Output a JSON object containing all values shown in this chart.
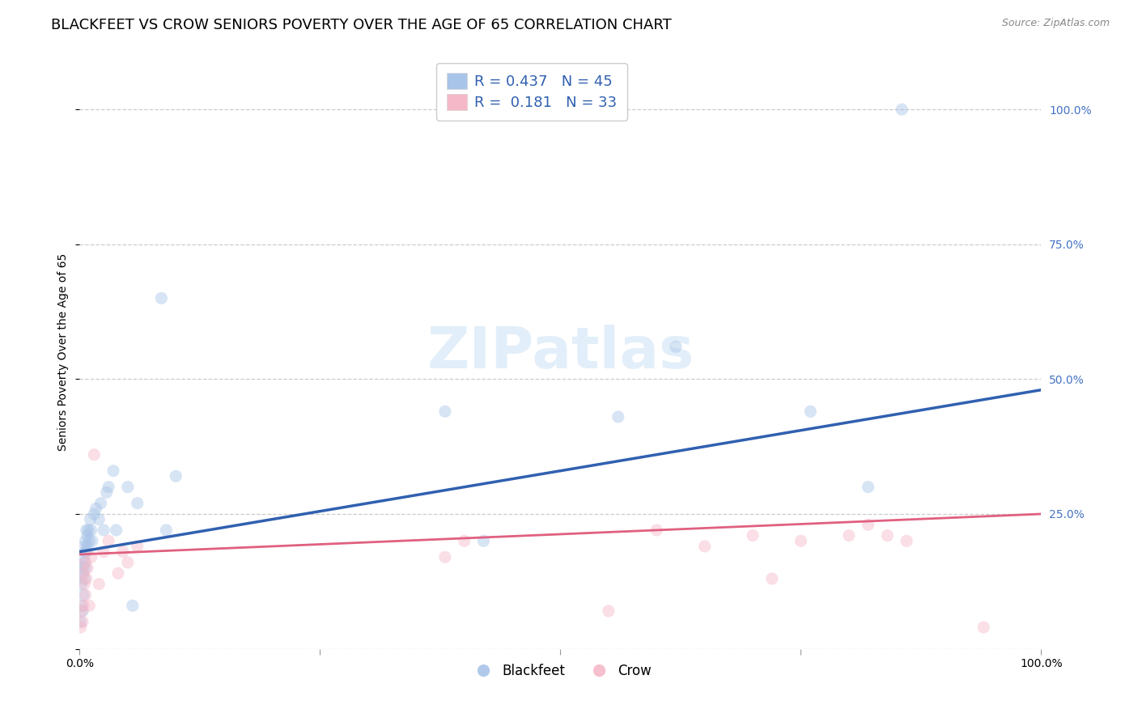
{
  "title": "BLACKFEET VS CROW SENIORS POVERTY OVER THE AGE OF 65 CORRELATION CHART",
  "source": "Source: ZipAtlas.com",
  "ylabel": "Seniors Poverty Over the Age of 65",
  "blackfeet_R": 0.437,
  "blackfeet_N": 45,
  "crow_R": 0.181,
  "crow_N": 33,
  "blackfeet_color": "#a8c4e8",
  "crow_color": "#f5b8c8",
  "blackfeet_line_color": "#3060b0",
  "crow_line_color": "#e06080",
  "blackfeet_x": [
    0.001,
    0.002,
    0.002,
    0.003,
    0.003,
    0.003,
    0.004,
    0.004,
    0.005,
    0.005,
    0.005,
    0.006,
    0.006,
    0.006,
    0.007,
    0.007,
    0.008,
    0.008,
    0.009,
    0.01,
    0.011,
    0.012,
    0.013,
    0.015,
    0.017,
    0.02,
    0.022,
    0.025,
    0.028,
    0.03,
    0.035,
    0.038,
    0.05,
    0.055,
    0.06,
    0.085,
    0.09,
    0.1,
    0.38,
    0.42,
    0.56,
    0.62,
    0.76,
    0.82,
    0.855
  ],
  "blackfeet_y": [
    0.05,
    0.08,
    0.12,
    0.14,
    0.07,
    0.15,
    0.1,
    0.17,
    0.13,
    0.19,
    0.16,
    0.15,
    0.18,
    0.2,
    0.18,
    0.22,
    0.19,
    0.21,
    0.22,
    0.2,
    0.24,
    0.22,
    0.2,
    0.25,
    0.26,
    0.24,
    0.27,
    0.22,
    0.29,
    0.3,
    0.33,
    0.22,
    0.3,
    0.08,
    0.27,
    0.65,
    0.22,
    0.32,
    0.44,
    0.2,
    0.43,
    0.56,
    0.44,
    0.3,
    1.0
  ],
  "crow_x": [
    0.001,
    0.002,
    0.003,
    0.004,
    0.004,
    0.005,
    0.006,
    0.006,
    0.007,
    0.008,
    0.01,
    0.012,
    0.015,
    0.02,
    0.025,
    0.03,
    0.04,
    0.045,
    0.05,
    0.06,
    0.38,
    0.4,
    0.55,
    0.6,
    0.65,
    0.7,
    0.72,
    0.75,
    0.8,
    0.82,
    0.84,
    0.86,
    0.94
  ],
  "crow_y": [
    0.04,
    0.07,
    0.05,
    0.08,
    0.14,
    0.12,
    0.1,
    0.16,
    0.13,
    0.15,
    0.08,
    0.17,
    0.36,
    0.12,
    0.18,
    0.2,
    0.14,
    0.18,
    0.16,
    0.19,
    0.17,
    0.2,
    0.07,
    0.22,
    0.19,
    0.21,
    0.13,
    0.2,
    0.21,
    0.23,
    0.21,
    0.2,
    0.04
  ],
  "xlim": [
    0.0,
    1.0
  ],
  "ylim": [
    0.0,
    1.1
  ],
  "xtick_positions": [
    0.0,
    0.25,
    0.5,
    0.75,
    1.0
  ],
  "xtick_labels": [
    "0.0%",
    "",
    "",
    "",
    "100.0%"
  ],
  "ytick_positions": [
    0.0,
    0.25,
    0.5,
    0.75,
    1.0
  ],
  "right_ytick_labels": [
    "",
    "25.0%",
    "50.0%",
    "75.0%",
    "100.0%"
  ],
  "grid_color": "#cccccc",
  "background_color": "#ffffff",
  "marker_size": 120,
  "marker_alpha": 0.45,
  "title_fontsize": 13,
  "axis_label_fontsize": 10,
  "tick_fontsize": 10,
  "legend_fontsize": 13,
  "right_tick_color": "#4472c4",
  "watermark_color": "#d0e4f5"
}
